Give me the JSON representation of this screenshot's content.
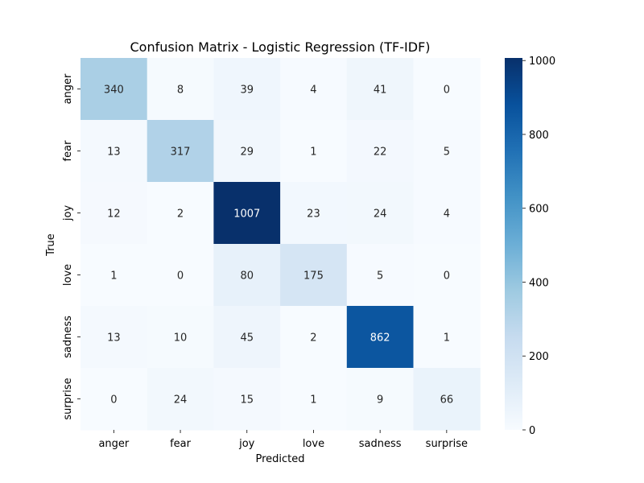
{
  "chart_data": {
    "type": "heatmap",
    "title": "Confusion Matrix - Logistic Regression (TF-IDF)",
    "xlabel": "Predicted",
    "ylabel": "True",
    "x_categories": [
      "anger",
      "fear",
      "joy",
      "love",
      "sadness",
      "surprise"
    ],
    "y_categories": [
      "anger",
      "fear",
      "joy",
      "love",
      "sadness",
      "surprise"
    ],
    "values": [
      [
        340,
        8,
        39,
        4,
        41,
        0
      ],
      [
        13,
        317,
        29,
        1,
        22,
        5
      ],
      [
        12,
        2,
        1007,
        23,
        24,
        4
      ],
      [
        1,
        0,
        80,
        175,
        5,
        0
      ],
      [
        13,
        10,
        45,
        2,
        862,
        1
      ],
      [
        0,
        24,
        15,
        1,
        9,
        66
      ]
    ],
    "colormap": "Blues",
    "colorbar": {
      "min": 0,
      "max": 1007,
      "ticks": [
        0,
        200,
        400,
        600,
        800,
        1000
      ]
    },
    "annotations": true
  }
}
